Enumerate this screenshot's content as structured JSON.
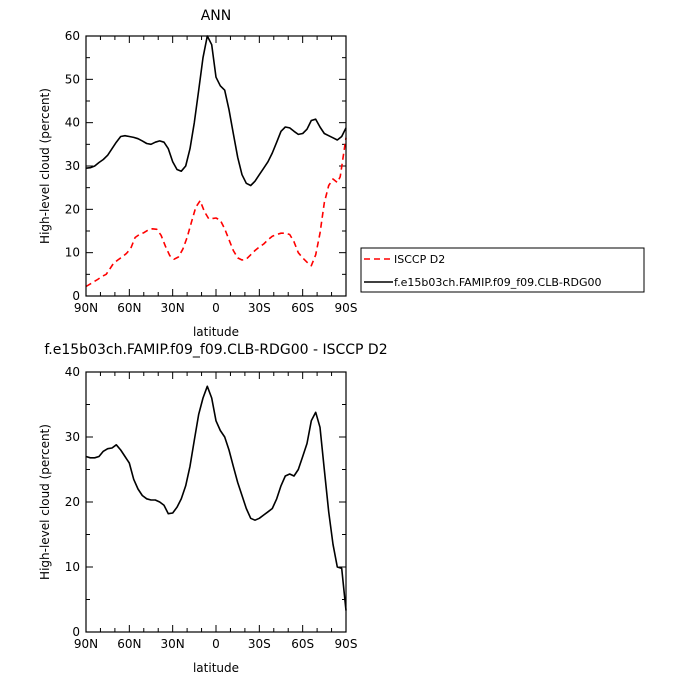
{
  "chart_data": [
    {
      "type": "line",
      "title": "ANN",
      "xlabel": "latitude",
      "ylabel": "High-level cloud (percent)",
      "xlim": [
        90,
        -90
      ],
      "ylim": [
        0,
        60
      ],
      "x_ticks": [
        90,
        60,
        30,
        0,
        -30,
        -60,
        -90
      ],
      "x_tick_labels": [
        "90N",
        "60N",
        "30N",
        "0",
        "30S",
        "60S",
        "90S"
      ],
      "y_ticks": [
        0,
        10,
        20,
        30,
        40,
        50,
        60
      ],
      "y_tick_labels": [
        "0",
        "10",
        "20",
        "30",
        "40",
        "50",
        "60"
      ],
      "grid": false,
      "legend_position": "right",
      "series": [
        {
          "name": "ISCCP D2",
          "color": "#ff0000",
          "style": "dashed",
          "x": [
            90,
            86,
            82,
            79,
            76,
            74,
            71,
            68,
            65,
            62,
            59,
            56,
            53,
            50,
            47,
            44,
            41,
            38,
            35,
            32,
            29,
            26,
            23,
            20,
            17,
            14,
            11,
            8,
            5,
            2,
            0,
            -3,
            -6,
            -9,
            -12,
            -15,
            -18,
            -21,
            -24,
            -27,
            -30,
            -33,
            -36,
            -39,
            -42,
            -45,
            -48,
            -51,
            -54,
            -57,
            -60,
            -63,
            -66,
            -69,
            -72,
            -75,
            -78,
            -81,
            -84,
            -86,
            -88,
            -90
          ],
          "y": [
            2.2,
            3.0,
            3.8,
            4.5,
            5.0,
            6.0,
            7.5,
            8.3,
            9.0,
            9.8,
            11.0,
            13.5,
            14.2,
            14.6,
            15.2,
            15.5,
            15.4,
            14.0,
            11.5,
            9.3,
            8.5,
            9.0,
            10.8,
            13.5,
            17.0,
            20.5,
            22.0,
            19.5,
            17.8,
            17.9,
            18.0,
            17.5,
            15.5,
            13.0,
            10.5,
            8.8,
            8.3,
            8.5,
            9.5,
            10.5,
            11.3,
            12.0,
            13.0,
            13.8,
            14.2,
            14.5,
            14.5,
            14.2,
            12.5,
            10.0,
            8.8,
            7.8,
            7.0,
            9.5,
            14.5,
            21.5,
            25.5,
            27.0,
            26.2,
            27.5,
            32.0,
            36.5
          ]
        },
        {
          "name": "f.e15b03ch.FAMIP.f09_f09.CLB-RDG00",
          "color": "#000000",
          "style": "solid",
          "x": [
            90,
            87,
            84,
            81,
            78,
            75,
            72,
            69,
            66,
            63,
            60,
            57,
            54,
            51,
            48,
            45,
            42,
            39,
            36,
            33,
            30,
            27,
            24,
            21,
            18,
            15,
            12,
            9,
            6,
            3,
            0,
            -3,
            -6,
            -9,
            -12,
            -15,
            -18,
            -21,
            -24,
            -27,
            -30,
            -33,
            -36,
            -39,
            -42,
            -45,
            -48,
            -51,
            -54,
            -57,
            -60,
            -63,
            -66,
            -69,
            -72,
            -75,
            -78,
            -81,
            -84,
            -87,
            -90
          ],
          "y": [
            29.5,
            29.6,
            30.0,
            30.8,
            31.5,
            32.5,
            34.0,
            35.5,
            36.8,
            37.0,
            36.8,
            36.6,
            36.3,
            35.8,
            35.2,
            35.0,
            35.5,
            35.8,
            35.5,
            34.0,
            31.0,
            29.2,
            28.8,
            30.0,
            34.0,
            40.0,
            47.5,
            55.0,
            60.0,
            58.0,
            50.5,
            48.5,
            47.5,
            43.0,
            37.5,
            32.0,
            28.0,
            26.0,
            25.5,
            26.5,
            28.0,
            29.5,
            31.0,
            33.0,
            35.5,
            38.0,
            39.0,
            38.8,
            38.0,
            37.3,
            37.5,
            38.5,
            40.5,
            40.8,
            39.0,
            37.5,
            37.0,
            36.5,
            36.0,
            36.8,
            38.8
          ]
        }
      ]
    },
    {
      "type": "line",
      "title": "f.e15b03ch.FAMIP.f09_f09.CLB-RDG00 - ISCCP D2",
      "xlabel": "latitude",
      "ylabel": "High-level cloud (percent)",
      "xlim": [
        90,
        -90
      ],
      "ylim": [
        0,
        40
      ],
      "x_ticks": [
        90,
        60,
        30,
        0,
        -30,
        -60,
        -90
      ],
      "x_tick_labels": [
        "90N",
        "60N",
        "30N",
        "0",
        "30S",
        "60S",
        "90S"
      ],
      "y_ticks": [
        0,
        10,
        20,
        30,
        40
      ],
      "y_tick_labels": [
        "0",
        "10",
        "20",
        "30",
        "40"
      ],
      "grid": false,
      "series": [
        {
          "color": "#000000",
          "style": "solid",
          "x": [
            90,
            87,
            84,
            81,
            78,
            75,
            72,
            69,
            66,
            63,
            60,
            57,
            54,
            51,
            48,
            45,
            42,
            39,
            36,
            33,
            30,
            27,
            24,
            21,
            18,
            15,
            12,
            9,
            6,
            3,
            0,
            -3,
            -6,
            -9,
            -12,
            -15,
            -18,
            -21,
            -24,
            -27,
            -30,
            -33,
            -36,
            -39,
            -42,
            -45,
            -48,
            -51,
            -54,
            -57,
            -60,
            -63,
            -66,
            -69,
            -72,
            -75,
            -78,
            -81,
            -84,
            -87,
            -90
          ],
          "y": [
            27.0,
            26.8,
            26.8,
            27.0,
            27.8,
            28.2,
            28.3,
            28.8,
            28.0,
            27.0,
            26.0,
            23.5,
            22.0,
            21.0,
            20.5,
            20.3,
            20.3,
            20.0,
            19.5,
            18.2,
            18.3,
            19.2,
            20.5,
            22.5,
            25.5,
            29.5,
            33.5,
            36.0,
            37.8,
            36.0,
            32.5,
            31.0,
            30.0,
            28.0,
            25.5,
            23.0,
            21.0,
            19.0,
            17.5,
            17.2,
            17.5,
            18.0,
            18.5,
            19.0,
            20.5,
            22.5,
            24.0,
            24.3,
            24.0,
            25.0,
            27.0,
            29.0,
            32.5,
            33.8,
            31.5,
            25.0,
            18.5,
            13.5,
            10.0,
            9.8,
            3.3
          ]
        }
      ]
    }
  ]
}
